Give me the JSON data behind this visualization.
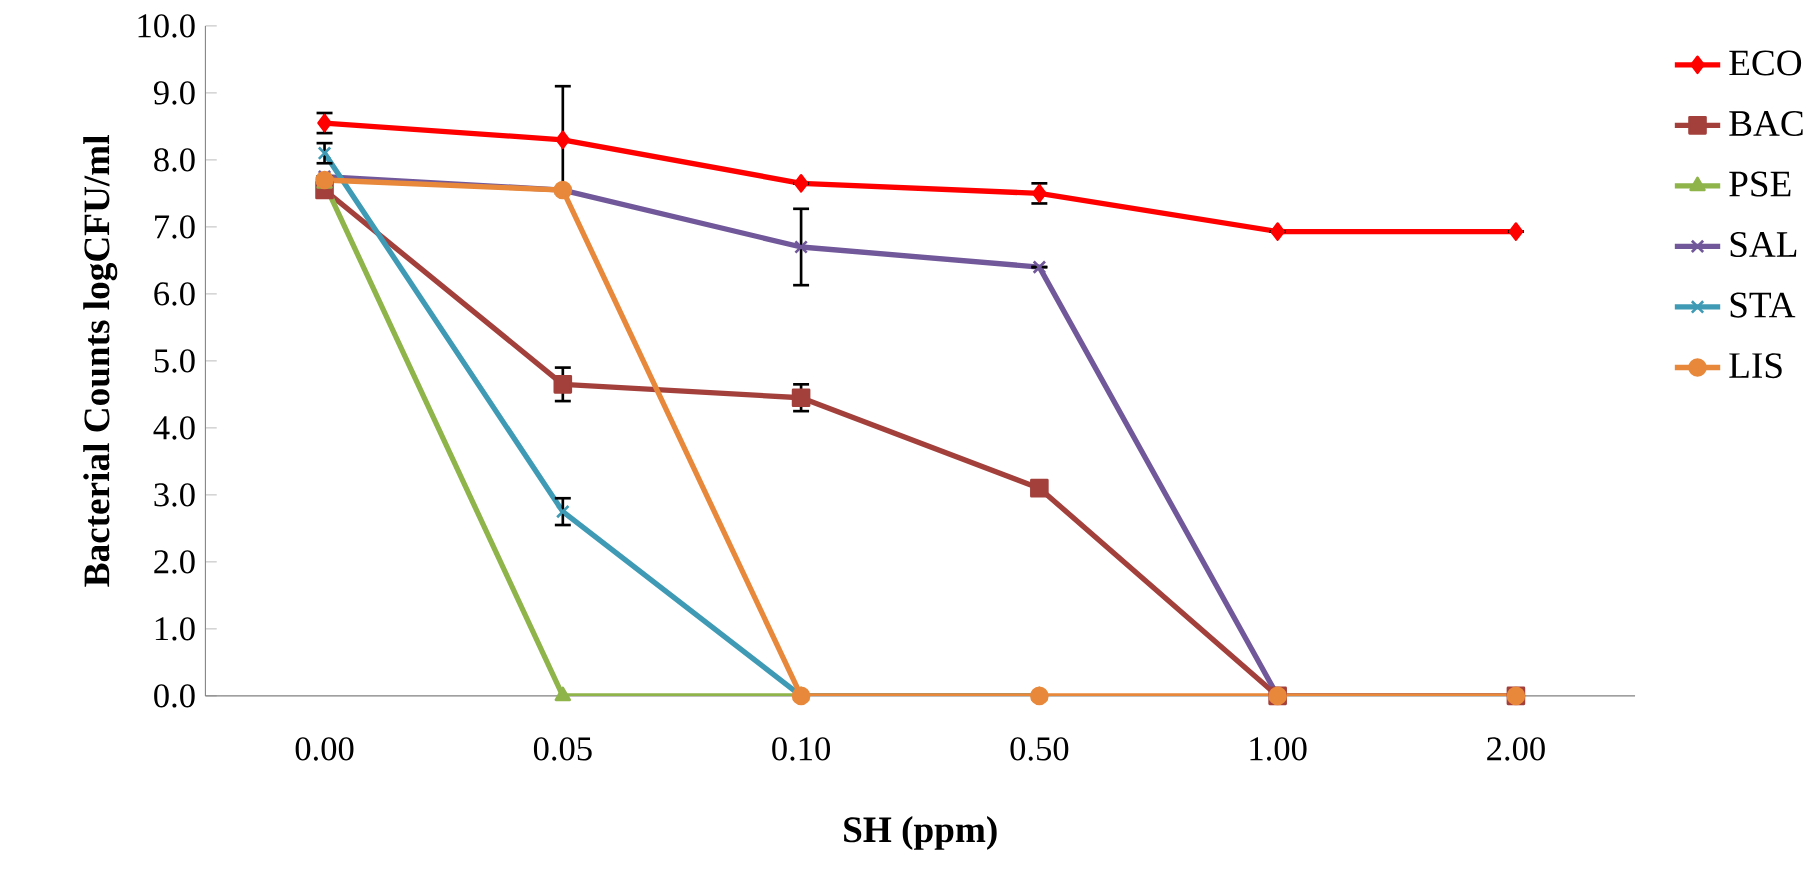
{
  "chart_data": {
    "type": "line",
    "xlabel": "SH (ppm)",
    "ylabel": "Bacterial Counts logCFU/ml",
    "categories": [
      "0.00",
      "0.05",
      "0.10",
      "0.50",
      "1.00",
      "2.00"
    ],
    "ylim": [
      0,
      10
    ],
    "yticks": [
      {
        "value": 0,
        "label": "0.0"
      },
      {
        "value": 1,
        "label": "1.0"
      },
      {
        "value": 2,
        "label": "2.0"
      },
      {
        "value": 3,
        "label": "3.0"
      },
      {
        "value": 4,
        "label": "4.0"
      },
      {
        "value": 5,
        "label": "5.0"
      },
      {
        "value": 6,
        "label": "6.0"
      },
      {
        "value": 7,
        "label": "7.0"
      },
      {
        "value": 8,
        "label": "8.0"
      },
      {
        "value": 9,
        "label": "9.0"
      },
      {
        "value": 10,
        "label": "10.0"
      }
    ],
    "grid": false,
    "legend": "right",
    "line_style": "solid",
    "series": [
      {
        "name": "ECO",
        "color": "#ff0000",
        "marker": "diamond",
        "values": [
          8.55,
          8.3,
          7.65,
          7.5,
          6.93,
          6.93
        ],
        "errors": [
          0.15,
          0.8,
          null,
          0.15,
          null,
          null
        ]
      },
      {
        "name": "BAC",
        "color": "#a3403c",
        "marker": "square",
        "values": [
          7.55,
          4.65,
          4.45,
          3.1,
          0,
          0
        ],
        "errors": [
          null,
          0.25,
          0.2,
          null,
          null,
          null
        ]
      },
      {
        "name": "PSE",
        "color": "#8eb44a",
        "marker": "triangle",
        "values": [
          7.65,
          0,
          0,
          0,
          null,
          null
        ]
      },
      {
        "name": "SAL",
        "color": "#71589a",
        "marker": "cross",
        "values": [
          7.75,
          7.55,
          6.7,
          6.4,
          0,
          0
        ],
        "errors": [
          null,
          null,
          0.57,
          null,
          null,
          null
        ]
      },
      {
        "name": "STA",
        "color": "#3f9bb5",
        "marker": "cross",
        "values": [
          8.1,
          2.75,
          0,
          0,
          null,
          null
        ],
        "errors": [
          0.15,
          0.2,
          null,
          null,
          null,
          null
        ]
      },
      {
        "name": "LIS",
        "color": "#e8883a",
        "marker": "circle",
        "values": [
          7.7,
          7.55,
          0,
          0,
          0,
          0
        ]
      }
    ]
  }
}
